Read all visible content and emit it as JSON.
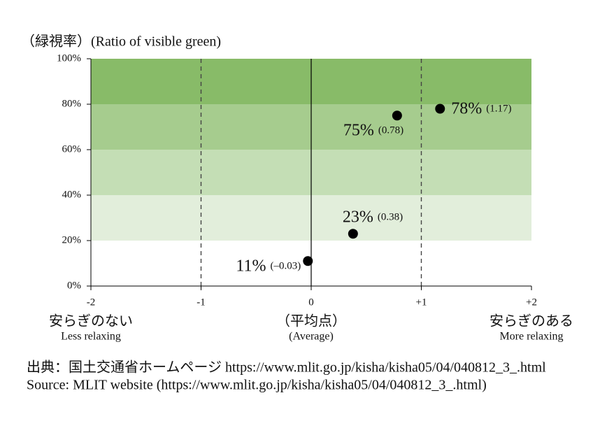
{
  "chart_data": {
    "type": "scatter",
    "y_label": "（緑視率）(Ratio of visible green)",
    "xlim": [
      -2,
      2
    ],
    "xticks": [
      -2,
      -1,
      0,
      {
        "value": 1,
        "label": "+1"
      },
      {
        "value": 2,
        "label": "+2"
      }
    ],
    "ylim": [
      0,
      100
    ],
    "yticks": [
      {
        "value": 0,
        "label": "0%"
      },
      {
        "value": 20,
        "label": "20%"
      },
      {
        "value": 40,
        "label": "40%"
      },
      {
        "value": 60,
        "label": "60%"
      },
      {
        "value": 80,
        "label": "80%"
      },
      {
        "value": 100,
        "label": "100%"
      }
    ],
    "bands": [
      {
        "from": 20,
        "to": 40,
        "color": "#e2eedb"
      },
      {
        "from": 40,
        "to": 60,
        "color": "#c4deb5"
      },
      {
        "from": 60,
        "to": 80,
        "color": "#a6cc8e"
      },
      {
        "from": 80,
        "to": 100,
        "color": "#88bb68"
      }
    ],
    "series": [
      {
        "color": "#000000",
        "x": [
          -0.03,
          0.38,
          0.78,
          1.17
        ],
        "values": [
          11,
          23,
          75,
          78
        ],
        "value_labels": [
          "11%",
          "23%",
          "75%",
          "78%"
        ],
        "x_value_labels": [
          "(–0.03)",
          "(0.38)",
          "(0.78)",
          "(1.17)"
        ]
      }
    ],
    "x_annotations": [
      {
        "x": -2,
        "label": "安らぎのない",
        "sublabel": "Less relaxing"
      },
      {
        "x": 0,
        "label": "（平均点）",
        "sublabel": "(Average)"
      },
      {
        "x": 2,
        "label": "安らぎのある",
        "sublabel": "More relaxing"
      }
    ],
    "source": [
      "出典：国土交通省ホームページ https://www.mlit.go.jp/kisha/kisha05/04/040812_3_.html",
      "Source: MLIT website (https://www.mlit.go.jp/kisha/kisha05/04/040812_3_.html)"
    ]
  }
}
